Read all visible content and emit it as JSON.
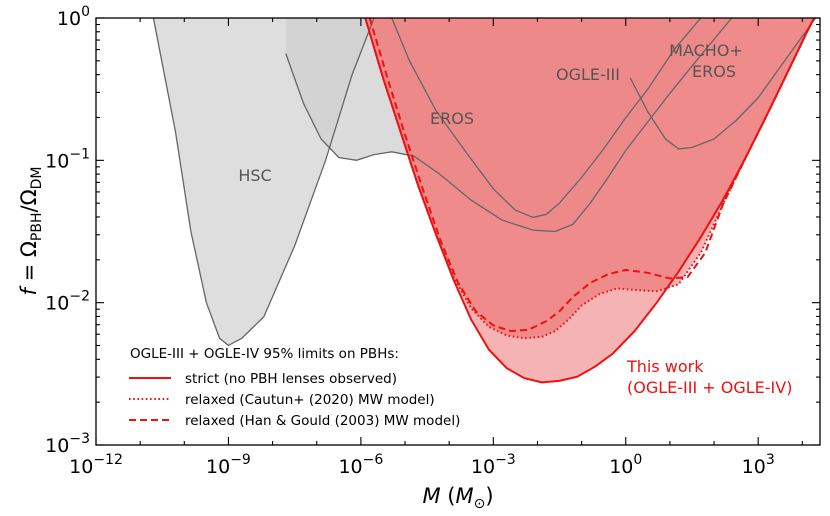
{
  "chart_data": {
    "type": "area",
    "title": "",
    "xscale": "log",
    "yscale": "log",
    "xlabel": "M (M_⊙)",
    "ylabel": "f = Ω_PBH/Ω_DM",
    "xlim_log10": [
      -12,
      4.4
    ],
    "ylim_log10": [
      -3,
      0
    ],
    "x_ticks": [
      {
        "base": "10",
        "exp": "−12",
        "log": -12
      },
      {
        "base": "10",
        "exp": "−9",
        "log": -9
      },
      {
        "base": "10",
        "exp": "−6",
        "log": -6
      },
      {
        "base": "10",
        "exp": "−3",
        "log": -3
      },
      {
        "base": "10",
        "exp": "0",
        "log": 0
      },
      {
        "base": "10",
        "exp": "3",
        "log": 3
      }
    ],
    "y_ticks": [
      {
        "base": "10",
        "exp": "−3",
        "log": -3
      },
      {
        "base": "10",
        "exp": "−2",
        "log": -2
      },
      {
        "base": "10",
        "exp": "−1",
        "log": -1
      },
      {
        "base": "10",
        "exp": "0",
        "log": 0
      }
    ],
    "regions": [
      {
        "name": "HSC",
        "label": "HSC",
        "kind": "excluded",
        "boundary_log10": [
          [
            -10.7,
            0
          ],
          [
            -10.2,
            -0.8
          ],
          [
            -9.85,
            -1.5
          ],
          [
            -9.5,
            -2.0
          ],
          [
            -9.2,
            -2.25
          ],
          [
            -9.0,
            -2.3
          ],
          [
            -8.7,
            -2.25
          ],
          [
            -8.2,
            -2.1
          ],
          [
            -7.5,
            -1.6
          ],
          [
            -6.8,
            -1.0
          ],
          [
            -6.2,
            -0.4
          ],
          [
            -5.7,
            0
          ]
        ]
      },
      {
        "name": "EROS",
        "label": "EROS",
        "kind": "excluded",
        "boundary_log10": [
          [
            -7.7,
            -0.25
          ],
          [
            -7.3,
            -0.6
          ],
          [
            -6.9,
            -0.85
          ],
          [
            -6.5,
            -0.98
          ],
          [
            -6.1,
            -1.0
          ],
          [
            -5.7,
            -0.96
          ],
          [
            -5.3,
            -0.94
          ],
          [
            -4.8,
            -0.97
          ],
          [
            -4.2,
            -1.1
          ],
          [
            -3.5,
            -1.28
          ],
          [
            -2.8,
            -1.42
          ],
          [
            -2.1,
            -1.49
          ],
          [
            -1.6,
            -1.5
          ],
          [
            -1.2,
            -1.45
          ],
          [
            -0.8,
            -1.3
          ],
          [
            -0.4,
            -1.12
          ],
          [
            0.0,
            -0.93
          ],
          [
            0.5,
            -0.73
          ],
          [
            1.0,
            -0.53
          ],
          [
            1.6,
            -0.3
          ],
          [
            2.4,
            0
          ]
        ]
      },
      {
        "name": "OGLE-III",
        "label": "OGLE-III",
        "kind": "excluded",
        "boundary_log10": [
          [
            -5.3,
            0
          ],
          [
            -4.9,
            -0.3
          ],
          [
            -4.3,
            -0.65
          ],
          [
            -3.6,
            -0.95
          ],
          [
            -3.0,
            -1.2
          ],
          [
            -2.5,
            -1.35
          ],
          [
            -2.1,
            -1.4
          ],
          [
            -1.8,
            -1.38
          ],
          [
            -1.5,
            -1.3
          ],
          [
            -1.0,
            -1.12
          ],
          [
            -0.5,
            -0.92
          ],
          [
            0.0,
            -0.7
          ],
          [
            0.5,
            -0.5
          ],
          [
            1.1,
            -0.22
          ],
          [
            1.7,
            0
          ]
        ]
      },
      {
        "name": "MACHO+EROS",
        "label_lines": [
          "MACHO+",
          "EROS"
        ],
        "kind": "excluded",
        "boundary_log10": [
          [
            0.1,
            -0.42
          ],
          [
            0.5,
            -0.66
          ],
          [
            0.9,
            -0.85
          ],
          [
            1.2,
            -0.92
          ],
          [
            1.5,
            -0.91
          ],
          [
            2.0,
            -0.85
          ],
          [
            2.5,
            -0.72
          ],
          [
            3.0,
            -0.56
          ],
          [
            3.6,
            -0.3
          ],
          [
            4.3,
            0
          ]
        ]
      }
    ],
    "series": [
      {
        "name": "strict",
        "legend": "strict (no PBH lenses observed)",
        "style": "solid",
        "color": "#ee1111",
        "points_log10": [
          [
            -5.9,
            0
          ],
          [
            -5.5,
            -0.42
          ],
          [
            -5.1,
            -0.8
          ],
          [
            -4.7,
            -1.18
          ],
          [
            -4.3,
            -1.52
          ],
          [
            -3.9,
            -1.84
          ],
          [
            -3.5,
            -2.12
          ],
          [
            -3.1,
            -2.33
          ],
          [
            -2.7,
            -2.46
          ],
          [
            -2.3,
            -2.53
          ],
          [
            -1.9,
            -2.56
          ],
          [
            -1.5,
            -2.55
          ],
          [
            -1.1,
            -2.52
          ],
          [
            -0.7,
            -2.45
          ],
          [
            -0.3,
            -2.36
          ],
          [
            0.2,
            -2.2
          ],
          [
            0.7,
            -2.0
          ],
          [
            1.2,
            -1.78
          ],
          [
            1.7,
            -1.54
          ],
          [
            2.2,
            -1.28
          ],
          [
            2.7,
            -0.99
          ],
          [
            3.2,
            -0.68
          ],
          [
            3.7,
            -0.36
          ],
          [
            4.1,
            -0.1
          ],
          [
            4.4,
            0.08
          ]
        ]
      },
      {
        "name": "relaxed-cautun",
        "legend": "relaxed (Cautun+ (2020) MW model)",
        "style": "dotted",
        "color": "#ee1111",
        "points_log10": [
          [
            -5.9,
            0
          ],
          [
            -5.5,
            -0.42
          ],
          [
            -5.1,
            -0.8
          ],
          [
            -4.7,
            -1.18
          ],
          [
            -4.3,
            -1.52
          ],
          [
            -3.9,
            -1.82
          ],
          [
            -3.5,
            -2.04
          ],
          [
            -3.1,
            -2.17
          ],
          [
            -2.7,
            -2.23
          ],
          [
            -2.3,
            -2.25
          ],
          [
            -1.9,
            -2.24
          ],
          [
            -1.6,
            -2.2
          ],
          [
            -1.3,
            -2.12
          ],
          [
            -1.0,
            -2.02
          ],
          [
            -0.6,
            -1.94
          ],
          [
            -0.2,
            -1.9
          ],
          [
            0.2,
            -1.91
          ],
          [
            0.7,
            -1.92
          ],
          [
            1.2,
            -1.87
          ],
          [
            1.7,
            -1.65
          ],
          [
            2.2,
            -1.31
          ],
          [
            2.7,
            -0.99
          ],
          [
            3.2,
            -0.68
          ],
          [
            3.7,
            -0.36
          ],
          [
            4.1,
            -0.1
          ],
          [
            4.4,
            0.08
          ]
        ]
      },
      {
        "name": "relaxed-han-gould",
        "legend": "relaxed (Han & Gould (2003) MW model)",
        "style": "dashed",
        "color": "#ee1111",
        "points_log10": [
          [
            -5.8,
            0
          ],
          [
            -5.4,
            -0.42
          ],
          [
            -5.0,
            -0.82
          ],
          [
            -4.6,
            -1.2
          ],
          [
            -4.2,
            -1.56
          ],
          [
            -3.8,
            -1.86
          ],
          [
            -3.4,
            -2.06
          ],
          [
            -3.0,
            -2.16
          ],
          [
            -2.6,
            -2.2
          ],
          [
            -2.2,
            -2.19
          ],
          [
            -1.8,
            -2.13
          ],
          [
            -1.5,
            -2.06
          ],
          [
            -1.2,
            -1.96
          ],
          [
            -0.8,
            -1.86
          ],
          [
            -0.4,
            -1.8
          ],
          [
            0.0,
            -1.77
          ],
          [
            0.5,
            -1.79
          ],
          [
            1.0,
            -1.83
          ],
          [
            1.4,
            -1.82
          ],
          [
            1.8,
            -1.65
          ],
          [
            2.2,
            -1.31
          ],
          [
            2.7,
            -0.99
          ],
          [
            3.2,
            -0.68
          ],
          [
            3.7,
            -0.36
          ],
          [
            4.1,
            -0.1
          ],
          [
            4.4,
            0.08
          ]
        ]
      }
    ],
    "legend": {
      "title": "OGLE-III + OGLE-IV 95% limits on PBHs:",
      "placement": "lower-left"
    },
    "annotation": {
      "lines": [
        "This work",
        "(OGLE-III + OGLE-IV)"
      ],
      "color": "#ee1111"
    },
    "colors": {
      "this_work_fill": "#ef8585",
      "relaxed_band_fill": "#f5b3b3",
      "other_fill": "#dedede",
      "other_fill_dark": "#cfcfcf",
      "other_line": "#666666"
    }
  }
}
